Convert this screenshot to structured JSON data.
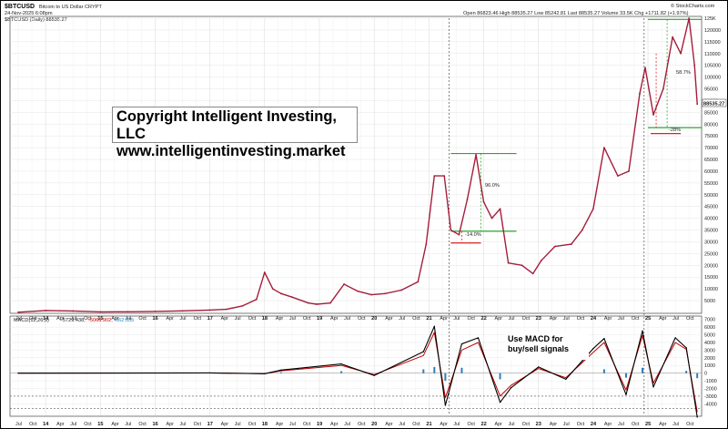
{
  "header": {
    "symbol": "$BTCUSD",
    "name": "Bitcoin to US Dollar",
    "exchange": "CRYPT",
    "date": "24-Nov-2025 6:08pm",
    "stats": "Open 86823.46  High 88535.27  Low 85242.81  Last 88535.27  Volume 33.5K  Chg +1711.82 (+1.97%)",
    "watermark": "© StockCharts.com",
    "series_label": "$BTCUSD (Daily) 88535.27"
  },
  "copyright": {
    "line1": "Copyright Intelligent Investing, LLC",
    "line2": "www.intelligentinvesting.market"
  },
  "macd_label": {
    "name": "MACD(12,26,9)",
    "v1": "-5729.438,",
    "v2": "-5066.902,",
    "v3": "-662.535"
  },
  "macd_note": {
    "line1": "Use MACD for",
    "line2": "buy/sell signals"
  },
  "annotations": {
    "rally_2021": "96.0%",
    "drop_2021": "-14.0%",
    "rally_2025": "58.7%",
    "drop_2025": "-28%"
  },
  "last_price_label": "88535.27",
  "colors": {
    "price": "#a51d3a",
    "macd": "#000000",
    "signal": "#c00000",
    "hist": "#2b7fb8",
    "green": "#2fa52f",
    "red": "#e02020"
  },
  "chart_data": [
    {
      "type": "line",
      "title": "$BTCUSD (Daily) 88535.27",
      "ylim": [
        0,
        125000
      ],
      "y_ticks": [
        5000,
        10000,
        15000,
        20000,
        25000,
        30000,
        35000,
        40000,
        45000,
        50000,
        55000,
        60000,
        65000,
        70000,
        75000,
        80000,
        85000,
        90000,
        95000,
        100000,
        105000,
        110000,
        115000,
        120000,
        125000
      ],
      "y_tick_labels": [
        "5000",
        "10000",
        "15000",
        "20000",
        "25000",
        "30000",
        "35000",
        "40000",
        "45000",
        "50000",
        "55000",
        "60000",
        "65000",
        "70000",
        "75000",
        "80000",
        "85000",
        "90000",
        "95000",
        "100000",
        "105000",
        "110000",
        "115000",
        "120000",
        "125K"
      ],
      "x_label_index": [
        0,
        1,
        2,
        3,
        4,
        5,
        6,
        7,
        8,
        9,
        10,
        11,
        12,
        13,
        14,
        15,
        16,
        17,
        18,
        19,
        20,
        21,
        22,
        23,
        24,
        25,
        26,
        27,
        28,
        29,
        30,
        31,
        32,
        33,
        34,
        35,
        36,
        37,
        38,
        39,
        40,
        41,
        42,
        43,
        44,
        45,
        46
      ],
      "x_labels": [
        "Jul",
        "Oct",
        "14",
        "Apr",
        "Jul",
        "Oct",
        "15",
        "Apr",
        "Jul",
        "Oct",
        "16",
        "Apr",
        "Jul",
        "Oct",
        "17",
        "Apr",
        "Jul",
        "Oct",
        "18",
        "Apr",
        "Jul",
        "Oct",
        "19",
        "Apr",
        "Jul",
        "Oct",
        "20",
        "Apr",
        "Jul",
        "Oct",
        "21",
        "Apr",
        "Jul",
        "Oct",
        "22",
        "Apr",
        "Jul",
        "Oct",
        "23",
        "Apr",
        "Jul",
        "Oct",
        "24",
        "Apr",
        "Jul",
        "Oct",
        "25"
      ],
      "x_labels_tail": [
        "Apr",
        "Jul",
        "Oct"
      ],
      "x": [
        2013.5,
        2014,
        2014.5,
        2015,
        2015.5,
        2016,
        2016.5,
        2017,
        2017.3,
        2017.6,
        2017.85,
        2018.0,
        2018.15,
        2018.3,
        2018.5,
        2018.8,
        2018.95,
        2019.2,
        2019.45,
        2019.7,
        2019.95,
        2020.2,
        2020.5,
        2020.8,
        2020.95,
        2021.1,
        2021.28,
        2021.4,
        2021.55,
        2021.7,
        2021.86,
        2022.0,
        2022.15,
        2022.3,
        2022.45,
        2022.7,
        2022.9,
        2023.05,
        2023.3,
        2023.6,
        2023.8,
        2024.0,
        2024.2,
        2024.45,
        2024.65,
        2024.85,
        2024.95,
        2025.1,
        2025.28,
        2025.45,
        2025.6,
        2025.75,
        2025.85,
        2025.9
      ],
      "y": [
        90,
        800,
        600,
        250,
        280,
        430,
        650,
        1000,
        1300,
        2800,
        5500,
        17000,
        10000,
        8000,
        6500,
        4000,
        3500,
        4000,
        12000,
        9000,
        7500,
        8000,
        9500,
        13000,
        29000,
        58000,
        58000,
        35000,
        33000,
        48000,
        67000,
        47000,
        40000,
        44000,
        21000,
        20000,
        16500,
        22000,
        28000,
        29000,
        35000,
        44000,
        70000,
        58000,
        60000,
        93000,
        104000,
        84000,
        95000,
        117000,
        110000,
        125000,
        105000,
        88535.27
      ]
    },
    {
      "type": "line",
      "title": "MACD(12,26,9)",
      "ylim": [
        -5500,
        7200
      ],
      "y_ticks": [
        -4000,
        -3000,
        -2000,
        -1000,
        0,
        1000,
        2000,
        3000,
        4000,
        5000,
        6000,
        7000
      ],
      "y_tick_labels": [
        "-4000",
        "-3000",
        "-2000",
        "-1000",
        "0",
        "1000",
        "2000",
        "3000",
        "4000",
        "5000",
        "6000",
        "7000"
      ],
      "series": [
        {
          "name": "MACD",
          "x": [
            2013.5,
            2017,
            2018,
            2018.3,
            2019.4,
            2020.0,
            2020.9,
            2021.1,
            2021.3,
            2021.6,
            2021.9,
            2022.3,
            2022.5,
            2023.0,
            2023.5,
            2024.0,
            2024.2,
            2024.6,
            2024.9,
            2025.1,
            2025.5,
            2025.7,
            2025.9
          ],
          "y": [
            0,
            30,
            -80,
            400,
            1200,
            -300,
            2800,
            6100,
            -4200,
            3800,
            4600,
            -3800,
            -1900,
            800,
            -800,
            3200,
            4500,
            -2800,
            5500,
            -1800,
            4600,
            3300,
            -5729.438
          ]
        },
        {
          "name": "Signal",
          "x": [
            2013.5,
            2017,
            2018,
            2018.3,
            2019.4,
            2020.0,
            2020.9,
            2021.1,
            2021.3,
            2021.6,
            2021.9,
            2022.3,
            2022.5,
            2023.0,
            2023.5,
            2024.0,
            2024.2,
            2024.6,
            2024.9,
            2025.1,
            2025.5,
            2025.7,
            2025.9
          ],
          "y": [
            0,
            20,
            -60,
            300,
            1000,
            -200,
            2300,
            5300,
            -3200,
            3000,
            4000,
            -3000,
            -1600,
            600,
            -600,
            2700,
            4000,
            -2200,
            4900,
            -1300,
            4000,
            3100,
            -5066.902
          ]
        },
        {
          "name": "Histogram",
          "x": [
            2018.0,
            2018.3,
            2019.4,
            2020.9,
            2021.1,
            2021.3,
            2021.6,
            2022.3,
            2024.2,
            2024.6,
            2024.9,
            2025.7,
            2025.9
          ],
          "y": [
            -100,
            120,
            250,
            500,
            800,
            -1000,
            700,
            -800,
            500,
            -600,
            700,
            300,
            -662.535
          ]
        }
      ]
    }
  ]
}
